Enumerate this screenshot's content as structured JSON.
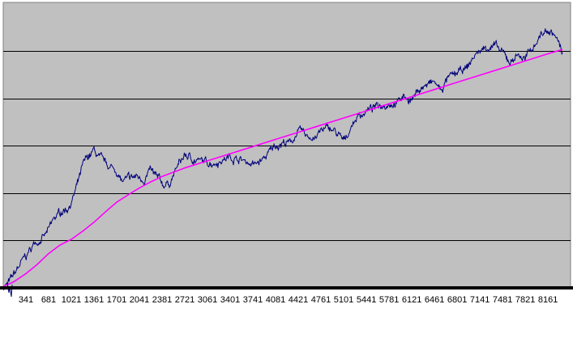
{
  "chart_data": {
    "type": "line",
    "title": "",
    "xlabel": "",
    "ylabel": "",
    "xlim": [
      1,
      8500
    ],
    "ylim": [
      0,
      100
    ],
    "grid": "horizontal",
    "legend": "none",
    "x_ticks": [
      341,
      681,
      1021,
      1361,
      1701,
      2041,
      2381,
      2721,
      3061,
      3401,
      3741,
      4081,
      4421,
      4761,
      5101,
      5441,
      5781,
      6121,
      6461,
      6801,
      7141,
      7481,
      7821,
      8161
    ],
    "y_gridlines": [
      16.6,
      33.2,
      49.8,
      66.4,
      83.0
    ],
    "colors": {
      "plot_background": "#C0C0C0",
      "baseline": "#000000",
      "gridline": "#000000"
    },
    "series": [
      {
        "color": "#00007A",
        "style": "noisy",
        "points": [
          [
            1,
            0.5
          ],
          [
            80,
            1.5
          ],
          [
            150,
            4
          ],
          [
            250,
            8
          ],
          [
            340,
            11
          ],
          [
            480,
            16
          ],
          [
            620,
            18
          ],
          [
            680,
            20
          ],
          [
            760,
            24
          ],
          [
            880,
            27
          ],
          [
            960,
            28
          ],
          [
            1020,
            30
          ],
          [
            1100,
            35
          ],
          [
            1200,
            43
          ],
          [
            1280,
            46
          ],
          [
            1361,
            48
          ],
          [
            1450,
            45
          ],
          [
            1560,
            43
          ],
          [
            1701,
            41
          ],
          [
            1780,
            37
          ],
          [
            1880,
            38
          ],
          [
            2000,
            39
          ],
          [
            2100,
            38
          ],
          [
            2200,
            41
          ],
          [
            2320,
            38
          ],
          [
            2400,
            36
          ],
          [
            2500,
            37
          ],
          [
            2600,
            42
          ],
          [
            2721,
            46.5
          ],
          [
            2850,
            45
          ],
          [
            3000,
            44
          ],
          [
            3150,
            44
          ],
          [
            3300,
            45
          ],
          [
            3401,
            46
          ],
          [
            3550,
            45
          ],
          [
            3680,
            44
          ],
          [
            3760,
            43
          ],
          [
            3900,
            45
          ],
          [
            4081,
            50
          ],
          [
            4200,
            51
          ],
          [
            4300,
            50.5
          ],
          [
            4421,
            55
          ],
          [
            4560,
            53
          ],
          [
            4700,
            53
          ],
          [
            4761,
            55
          ],
          [
            4900,
            56
          ],
          [
            5000,
            54
          ],
          [
            5101,
            51
          ],
          [
            5200,
            56
          ],
          [
            5300,
            60
          ],
          [
            5441,
            62
          ],
          [
            5550,
            63
          ],
          [
            5650,
            64
          ],
          [
            5781,
            65
          ],
          [
            5900,
            65
          ],
          [
            6000,
            67
          ],
          [
            6121,
            66
          ],
          [
            6250,
            70
          ],
          [
            6350,
            71
          ],
          [
            6461,
            72
          ],
          [
            6560,
            69
          ],
          [
            6650,
            73
          ],
          [
            6801,
            75
          ],
          [
            6950,
            77
          ],
          [
            7050,
            81
          ],
          [
            7141,
            83
          ],
          [
            7250,
            84.5
          ],
          [
            7350,
            85
          ],
          [
            7481,
            82
          ],
          [
            7600,
            79
          ],
          [
            7700,
            82
          ],
          [
            7821,
            80
          ],
          [
            7950,
            85
          ],
          [
            8060,
            89
          ],
          [
            8161,
            90
          ],
          [
            8250,
            89
          ],
          [
            8320,
            86
          ],
          [
            8380,
            81
          ]
        ]
      },
      {
        "color": "#FF00FF",
        "style": "smooth",
        "points": [
          [
            1,
            0.5
          ],
          [
            150,
            2
          ],
          [
            341,
            5
          ],
          [
            500,
            8
          ],
          [
            681,
            12
          ],
          [
            850,
            15
          ],
          [
            1021,
            17
          ],
          [
            1200,
            20
          ],
          [
            1361,
            23
          ],
          [
            1550,
            27
          ],
          [
            1701,
            30
          ],
          [
            1900,
            33
          ],
          [
            2041,
            35
          ],
          [
            2200,
            37
          ],
          [
            2381,
            39
          ],
          [
            2550,
            40.5
          ],
          [
            2721,
            42
          ],
          [
            3061,
            44.5
          ],
          [
            3401,
            47
          ],
          [
            3741,
            49.5
          ],
          [
            4081,
            52
          ],
          [
            4421,
            54.5
          ],
          [
            4761,
            57
          ],
          [
            5101,
            59.5
          ],
          [
            5441,
            62
          ],
          [
            5781,
            64.5
          ],
          [
            6121,
            67
          ],
          [
            6461,
            69.5
          ],
          [
            6801,
            72
          ],
          [
            7141,
            74.5
          ],
          [
            7481,
            77
          ],
          [
            7821,
            79.5
          ],
          [
            8161,
            82
          ],
          [
            8380,
            83.5
          ]
        ]
      }
    ]
  }
}
